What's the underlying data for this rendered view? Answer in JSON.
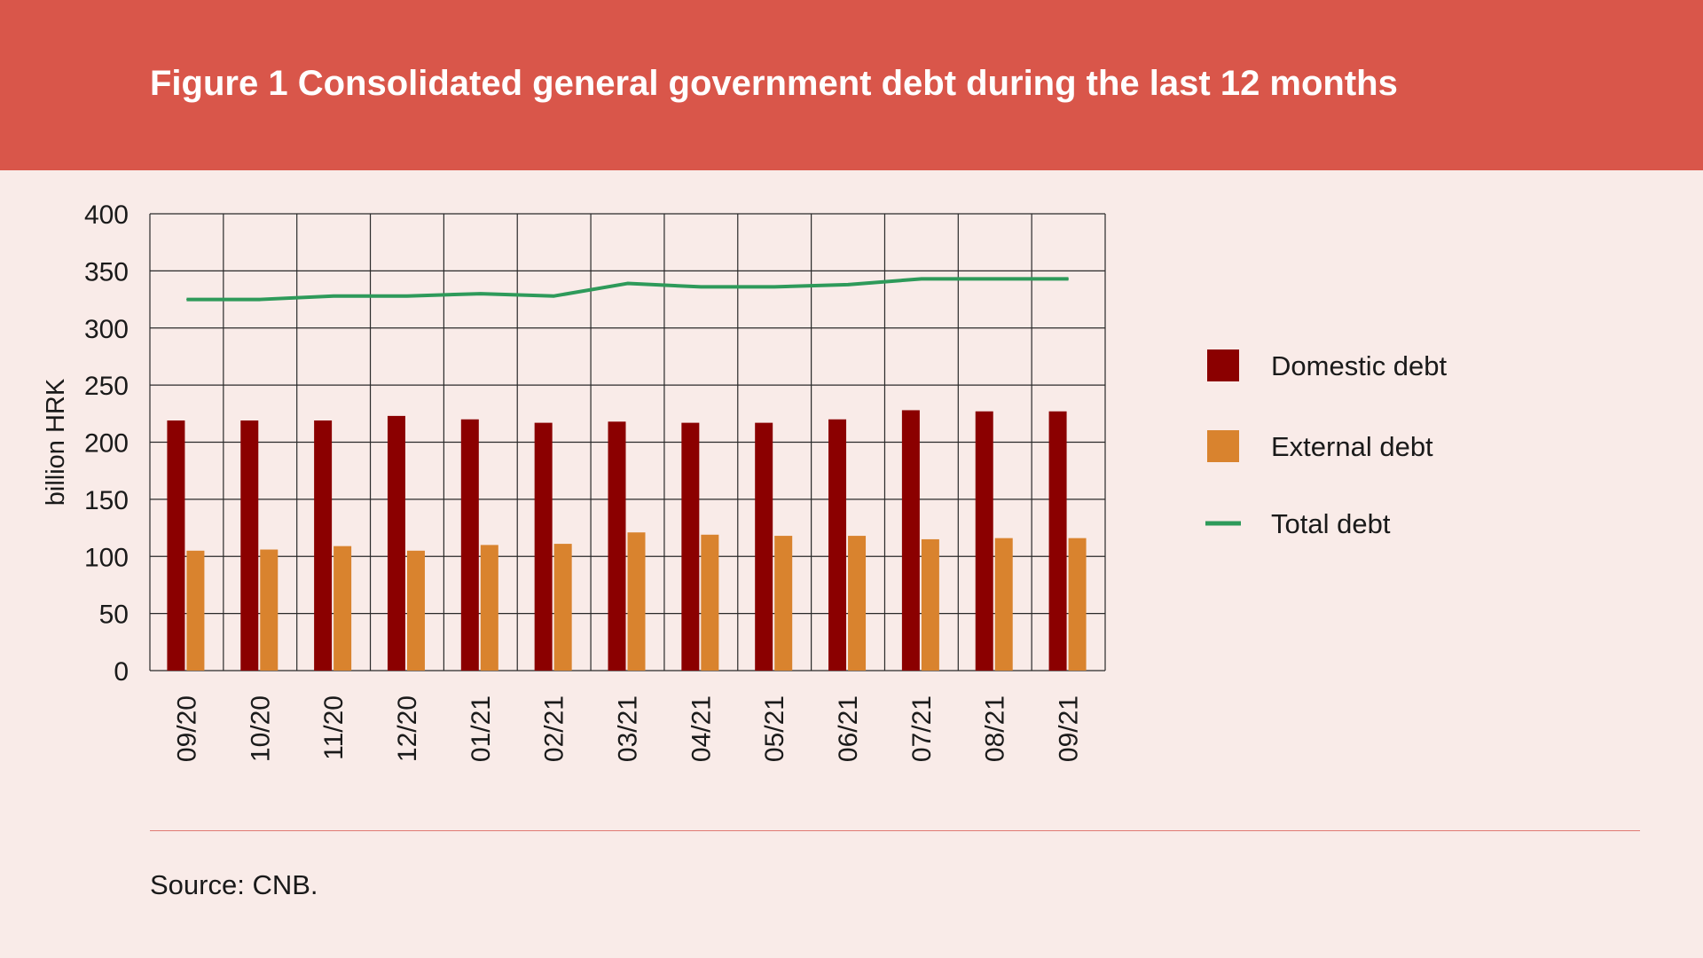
{
  "header": {
    "title": "Figure 1 Consolidated general government debt during the last 12 months"
  },
  "footer": {
    "source": "Source: CNB."
  },
  "colors": {
    "domestic": "#8b0000",
    "external": "#d9832e",
    "total": "#2e9a5a",
    "grid": "#2a2a2a"
  },
  "chart_data": {
    "type": "bar",
    "ylabel": "billion HRK",
    "ylim": [
      0,
      400
    ],
    "yticks": [
      0,
      50,
      100,
      150,
      200,
      250,
      300,
      350,
      400
    ],
    "categories": [
      "09/20",
      "10/20",
      "11/20",
      "12/20",
      "01/21",
      "02/21",
      "03/21",
      "04/21",
      "05/21",
      "06/21",
      "07/21",
      "08/21",
      "09/21"
    ],
    "series": [
      {
        "name": "Domestic debt",
        "kind": "bar",
        "values": [
          219,
          219,
          219,
          223,
          220,
          217,
          218,
          217,
          217,
          220,
          228,
          227,
          227
        ]
      },
      {
        "name": "External debt",
        "kind": "bar",
        "values": [
          105,
          106,
          109,
          105,
          110,
          111,
          121,
          119,
          118,
          118,
          115,
          116,
          116
        ]
      },
      {
        "name": "Total debt",
        "kind": "line",
        "values": [
          325,
          325,
          328,
          328,
          330,
          328,
          339,
          336,
          336,
          338,
          343,
          343,
          343
        ]
      }
    ],
    "grid": true,
    "legend": "right"
  }
}
